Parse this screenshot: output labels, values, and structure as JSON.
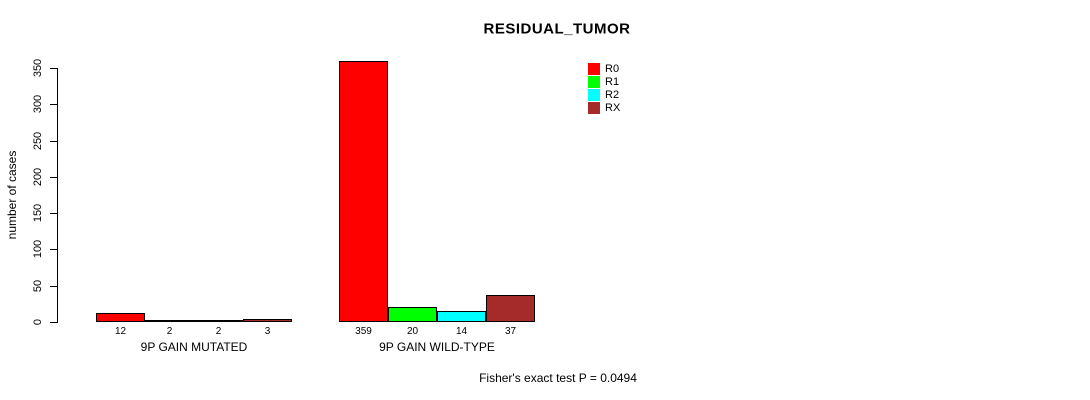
{
  "chart_data": {
    "type": "bar",
    "title": "RESIDUAL_TUMOR",
    "ylabel": "number of cases",
    "ylim": [
      0,
      350
    ],
    "yticks": [
      0,
      50,
      100,
      150,
      200,
      250,
      300,
      350
    ],
    "categories": [
      "9P GAIN MUTATED",
      "9P GAIN WILD-TYPE"
    ],
    "series": [
      {
        "name": "R0",
        "color": "#FF0000",
        "values": [
          12,
          359
        ]
      },
      {
        "name": "R1",
        "color": "#00FF00",
        "values": [
          2,
          20
        ]
      },
      {
        "name": "R2",
        "color": "#00FFFF",
        "values": [
          2,
          14
        ]
      },
      {
        "name": "RX",
        "color": "#A52A2A",
        "values": [
          3,
          37
        ]
      }
    ],
    "bar_value_labels": true,
    "legend_position": "top-right",
    "grid": false,
    "footer": "Fisher's exact test P = 0.0494"
  }
}
